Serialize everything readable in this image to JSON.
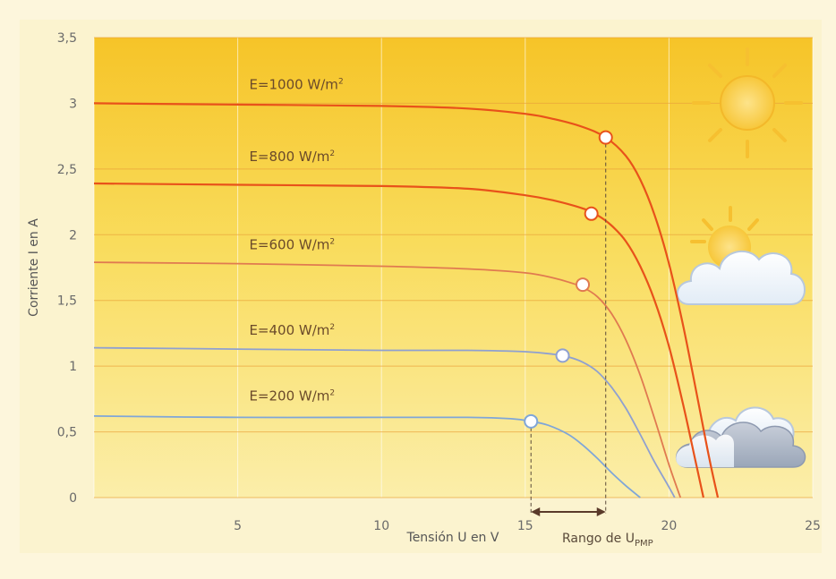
{
  "chart_data": {
    "type": "line",
    "xlabel": "Tensión U en V",
    "ylabel": "Corriente I en A",
    "xlim": [
      0,
      25
    ],
    "ylim": [
      0,
      3.5
    ],
    "x_ticks": [
      "5",
      "10",
      "15",
      "20",
      "25"
    ],
    "y_ticks": [
      "0",
      "0,5",
      "1",
      "1,5",
      "2",
      "2,5",
      "3",
      "3,5"
    ],
    "grid": true,
    "series": [
      {
        "name": "E=1000 W/m²",
        "color": "#e8521a",
        "x": [
          0,
          5,
          10,
          13,
          15,
          16,
          17,
          17.8,
          18.5,
          19,
          19.5,
          20,
          20.5,
          21,
          21.4,
          21.7
        ],
        "y": [
          3.0,
          2.99,
          2.98,
          2.96,
          2.92,
          2.88,
          2.82,
          2.74,
          2.6,
          2.42,
          2.15,
          1.78,
          1.3,
          0.75,
          0.3,
          0
        ],
        "mpp": {
          "x": 17.8,
          "y": 2.74
        }
      },
      {
        "name": "E=800 W/m²",
        "color": "#e8521a",
        "x": [
          0,
          5,
          10,
          13,
          15,
          16,
          17,
          17.5,
          18,
          18.5,
          19,
          19.5,
          20,
          20.5,
          20.9,
          21.2
        ],
        "y": [
          2.39,
          2.38,
          2.37,
          2.35,
          2.3,
          2.26,
          2.2,
          2.15,
          2.07,
          1.95,
          1.76,
          1.5,
          1.15,
          0.7,
          0.3,
          0
        ],
        "mpp": {
          "x": 17.3,
          "y": 2.16
        }
      },
      {
        "name": "E=600 W/m²",
        "color": "#e07a50",
        "x": [
          0,
          5,
          10,
          13,
          15,
          16,
          16.5,
          17,
          17.5,
          18,
          18.5,
          19,
          19.5,
          20,
          20.4
        ],
        "y": [
          1.79,
          1.78,
          1.76,
          1.74,
          1.71,
          1.67,
          1.64,
          1.6,
          1.53,
          1.4,
          1.2,
          0.93,
          0.6,
          0.25,
          0
        ],
        "mpp": {
          "x": 17.0,
          "y": 1.62
        }
      },
      {
        "name": "E=400 W/m²",
        "color": "#8fa0d0",
        "x": [
          0,
          5,
          10,
          13,
          15,
          16,
          16.5,
          17,
          17.5,
          18,
          18.5,
          19,
          19.5,
          20,
          20.2
        ],
        "y": [
          1.14,
          1.13,
          1.12,
          1.12,
          1.11,
          1.09,
          1.07,
          1.03,
          0.96,
          0.84,
          0.68,
          0.48,
          0.27,
          0.08,
          0
        ],
        "mpp": {
          "x": 16.3,
          "y": 1.08
        }
      },
      {
        "name": "E=200 W/m²",
        "color": "#7fa6d8",
        "x": [
          0,
          5,
          10,
          13,
          14.5,
          15.2,
          15.8,
          16.5,
          17,
          17.5,
          18,
          18.5,
          19
        ],
        "y": [
          0.62,
          0.61,
          0.61,
          0.61,
          0.6,
          0.58,
          0.55,
          0.48,
          0.4,
          0.3,
          0.19,
          0.09,
          0
        ],
        "mpp": {
          "x": 15.2,
          "y": 0.58
        }
      }
    ],
    "series_labels": [
      {
        "text": "E=1000 W/m²",
        "x": 5.4,
        "y": 3.11
      },
      {
        "text": "E=800 W/m²",
        "x": 5.4,
        "y": 2.56
      },
      {
        "text": "E=600 W/m²",
        "x": 5.4,
        "y": 1.89
      },
      {
        "text": "E=400 W/m²",
        "x": 5.4,
        "y": 1.24
      },
      {
        "text": "E=200 W/m²",
        "x": 5.4,
        "y": 0.74
      }
    ],
    "range_annotation": {
      "label": "Rango de U",
      "label_sub": "PMP",
      "x_from": 15.2,
      "x_to": 17.8
    }
  }
}
